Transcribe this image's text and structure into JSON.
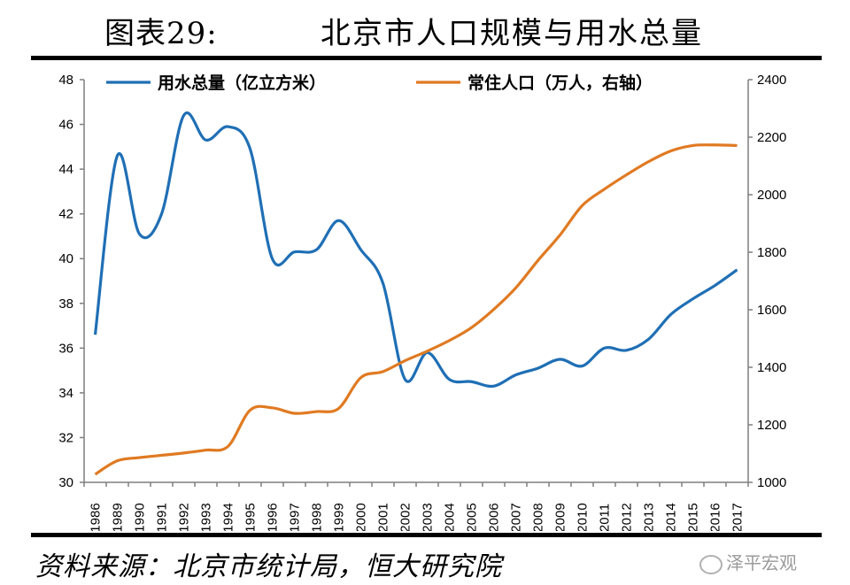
{
  "header": {
    "label": "图表29:",
    "title": "北京市人口规模与用水总量"
  },
  "footer": {
    "source": "资料来源：北京市统计局，恒大研究院",
    "watermark": "泽平宏观"
  },
  "colors": {
    "water": "#1f6fb5",
    "population": "#e07a22",
    "axis": "#7f7f7f"
  },
  "chart_data": {
    "type": "line",
    "title": "北京市人口规模与用水总量",
    "x": [
      "1986",
      "1989",
      "1990",
      "1991",
      "1992",
      "1993",
      "1994",
      "1995",
      "1996",
      "1997",
      "1998",
      "1999",
      "2000",
      "2001",
      "2002",
      "2003",
      "2004",
      "2005",
      "2006",
      "2007",
      "2008",
      "2009",
      "2010",
      "2011",
      "2012",
      "2013",
      "2014",
      "2015",
      "2016",
      "2017"
    ],
    "y_left": {
      "ylim": [
        30,
        48
      ],
      "ticks": [
        30,
        32,
        34,
        36,
        38,
        40,
        42,
        44,
        46,
        48
      ]
    },
    "y_right": {
      "ylim": [
        1000,
        2400
      ],
      "ticks": [
        1000,
        1200,
        1400,
        1600,
        1800,
        2000,
        2200,
        2400
      ]
    },
    "legend_placement": "top",
    "series": [
      {
        "name": "用水总量（亿立方米）",
        "axis": "left",
        "values": [
          36.6,
          44.6,
          41.1,
          42.0,
          46.4,
          45.3,
          45.9,
          44.9,
          40.0,
          40.3,
          40.4,
          41.7,
          40.4,
          38.9,
          34.6,
          35.8,
          34.6,
          34.5,
          34.3,
          34.8,
          35.1,
          35.5,
          35.2,
          36.0,
          35.9,
          36.4,
          37.5,
          38.2,
          38.8,
          39.5
        ]
      },
      {
        "name": "常住人口（万人，右轴）",
        "axis": "right",
        "values": [
          1028,
          1075,
          1086,
          1094,
          1102,
          1112,
          1125,
          1251,
          1259,
          1240,
          1246,
          1257,
          1364,
          1385,
          1423,
          1456,
          1493,
          1538,
          1601,
          1676,
          1771,
          1860,
          1962,
          2019,
          2069,
          2115,
          2152,
          2171,
          2173,
          2171
        ]
      }
    ]
  }
}
